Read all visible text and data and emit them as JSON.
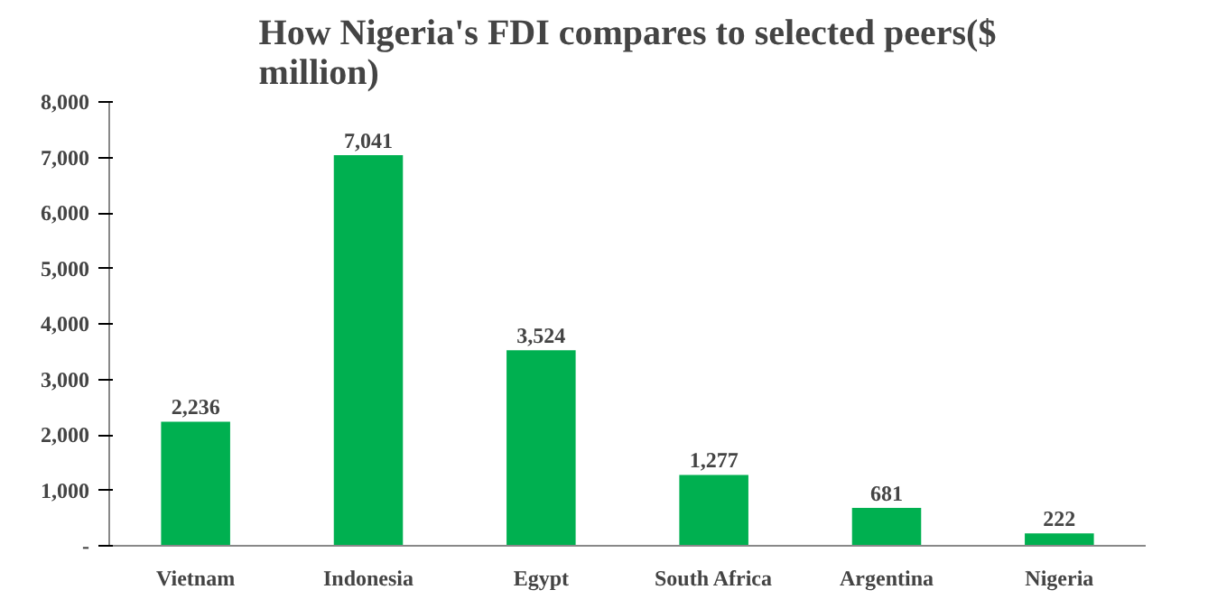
{
  "chart_data": {
    "type": "bar",
    "title": "How Nigeria's FDI compares to selected peers($ million)",
    "categories": [
      "Vietnam",
      "Indonesia",
      "Egypt",
      "South Africa",
      "Argentina",
      "Nigeria"
    ],
    "values": [
      2236,
      7041,
      3524,
      1277,
      681,
      222
    ],
    "color": "#00b050",
    "ylim": [
      0,
      8000
    ],
    "yticks": [
      {
        "value": 0,
        "label": "-"
      },
      {
        "value": 1000,
        "label": "1,000"
      },
      {
        "value": 2000,
        "label": "2,000"
      },
      {
        "value": 3000,
        "label": "3,000"
      },
      {
        "value": 4000,
        "label": "4,000"
      },
      {
        "value": 5000,
        "label": "5,000"
      },
      {
        "value": 6000,
        "label": "6,000"
      },
      {
        "value": 7000,
        "label": "7,000"
      },
      {
        "value": 8000,
        "label": "8,000"
      }
    ],
    "value_labels": [
      "2,236",
      "7,041",
      "3,524",
      "1,277",
      "681",
      "222"
    ],
    "grid": false
  }
}
